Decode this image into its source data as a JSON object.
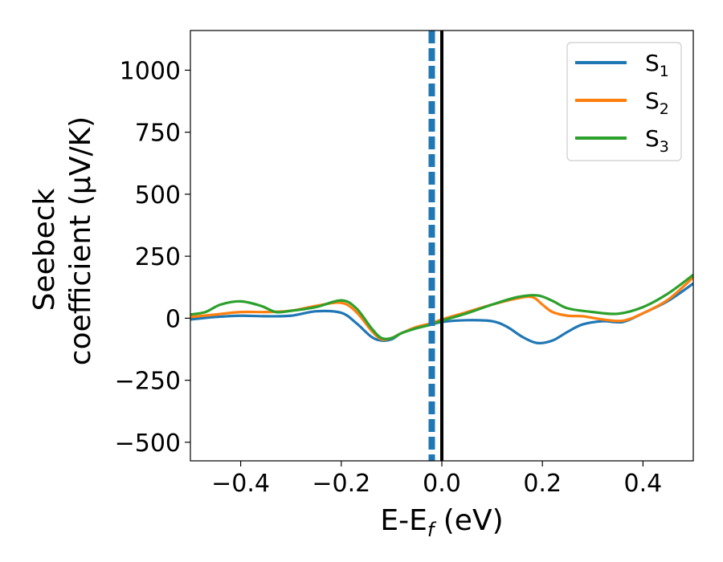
{
  "chart_data": {
    "type": "line",
    "title": "",
    "xlabel": {
      "main": "E-E",
      "sub": "f",
      "tail": " (eV)"
    },
    "ylabel": {
      "line1": "Seebeck",
      "line2": "coefficient  (μV/K)"
    },
    "xlim": [
      -0.5,
      0.5
    ],
    "ylim": [
      -575,
      1160
    ],
    "xticks": [
      -0.4,
      -0.2,
      0.0,
      0.2,
      0.4
    ],
    "xtick_labels": [
      "−0.4",
      "−0.2",
      "0.0",
      "0.2",
      "0.4"
    ],
    "yticks": [
      -500,
      -250,
      0,
      250,
      500,
      750,
      1000
    ],
    "ytick_labels": [
      "−500",
      "−250",
      "0",
      "250",
      "500",
      "750",
      "1000"
    ],
    "grid": false,
    "legend_position": "top-right",
    "vlines": [
      {
        "x": 0.0,
        "color": "#000000",
        "style": "solid"
      },
      {
        "x": -0.02,
        "color": "#1f77b4",
        "style": "dashed"
      }
    ],
    "series": [
      {
        "name": "S",
        "sub": "1",
        "color": "#1f77b4",
        "x": [
          -0.5,
          -0.45,
          -0.4,
          -0.35,
          -0.3,
          -0.25,
          -0.2,
          -0.17,
          -0.14,
          -0.12,
          -0.1,
          -0.08,
          -0.05,
          -0.02,
          0.0,
          0.05,
          0.1,
          0.13,
          0.16,
          0.19,
          0.22,
          0.25,
          0.28,
          0.32,
          0.36,
          0.4,
          0.45,
          0.5
        ],
        "y": [
          -5,
          5,
          10,
          8,
          10,
          28,
          22,
          -20,
          -75,
          -90,
          -85,
          -60,
          -40,
          -25,
          -15,
          -8,
          -12,
          -35,
          -75,
          -100,
          -90,
          -55,
          -25,
          -12,
          -15,
          20,
          70,
          140
        ]
      },
      {
        "name": "S",
        "sub": "2",
        "color": "#ff7f0e",
        "x": [
          -0.5,
          -0.45,
          -0.4,
          -0.35,
          -0.3,
          -0.25,
          -0.2,
          -0.17,
          -0.14,
          -0.12,
          -0.1,
          -0.08,
          -0.05,
          -0.02,
          0.0,
          0.05,
          0.1,
          0.15,
          0.18,
          0.2,
          0.22,
          0.25,
          0.28,
          0.32,
          0.36,
          0.4,
          0.45,
          0.5
        ],
        "y": [
          5,
          15,
          25,
          25,
          30,
          50,
          62,
          25,
          -50,
          -85,
          -80,
          -60,
          -35,
          -20,
          -5,
          25,
          55,
          80,
          85,
          55,
          25,
          10,
          8,
          -5,
          -10,
          20,
          75,
          165
        ]
      },
      {
        "name": "S",
        "sub": "3",
        "color": "#2ca02c",
        "x": [
          -0.5,
          -0.47,
          -0.44,
          -0.4,
          -0.36,
          -0.33,
          -0.3,
          -0.25,
          -0.2,
          -0.17,
          -0.14,
          -0.12,
          -0.1,
          -0.08,
          -0.05,
          -0.02,
          0.0,
          0.05,
          0.1,
          0.15,
          0.19,
          0.22,
          0.25,
          0.3,
          0.35,
          0.4,
          0.45,
          0.5
        ],
        "y": [
          15,
          25,
          55,
          68,
          50,
          25,
          30,
          45,
          72,
          40,
          -40,
          -80,
          -80,
          -60,
          -40,
          -25,
          -10,
          20,
          55,
          85,
          92,
          70,
          40,
          25,
          18,
          45,
          100,
          175
        ]
      }
    ]
  }
}
